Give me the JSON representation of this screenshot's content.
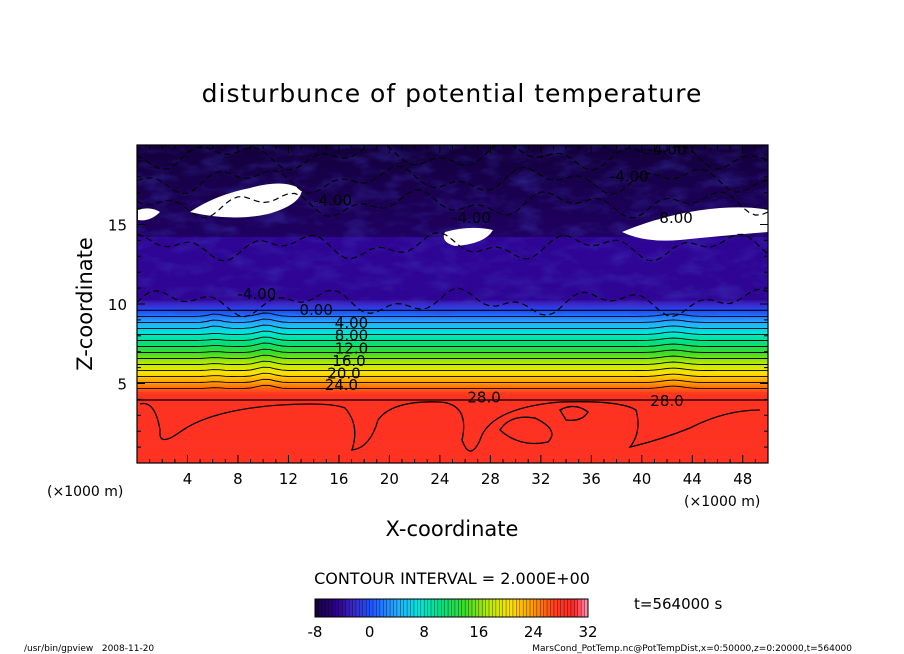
{
  "chart_data": {
    "type": "heatmap",
    "title": "disturbunce of potential temperature",
    "xlabel": "X-coordinate",
    "ylabel": "Z-coordinate",
    "x_unit": "(×1000 m)",
    "z_unit": "(×1000 m)",
    "xlim": [
      0,
      50
    ],
    "ylim": [
      0,
      20
    ],
    "x_ticks": [
      4,
      8,
      12,
      16,
      20,
      24,
      28,
      32,
      36,
      40,
      44,
      48
    ],
    "y_ticks": [
      5,
      10,
      15
    ],
    "contour_interval_text": "CONTOUR INTERVAL = 2.000E+00",
    "time_text": "t=564000 s",
    "colorbar": {
      "min": -8,
      "max": 32,
      "ticks": [
        -8,
        0,
        8,
        16,
        24,
        32
      ]
    },
    "contour_labels": [
      {
        "text": "-4.00",
        "x": 42.0,
        "z": 19.4
      },
      {
        "text": "-4.00",
        "x": 39.0,
        "z": 17.7
      },
      {
        "text": "-4.00",
        "x": 15.5,
        "z": 16.2
      },
      {
        "text": "-4.00",
        "x": 26.5,
        "z": 15.1
      },
      {
        "text": "-8.00",
        "x": 42.5,
        "z": 15.1
      },
      {
        "text": "-4.00",
        "x": 9.5,
        "z": 10.3
      },
      {
        "text": "0.00",
        "x": 14.2,
        "z": 9.3
      },
      {
        "text": "4.00",
        "x": 17.0,
        "z": 8.5
      },
      {
        "text": "8.00",
        "x": 17.0,
        "z": 7.7
      },
      {
        "text": "12.0",
        "x": 17.0,
        "z": 6.9
      },
      {
        "text": "16.0",
        "x": 16.8,
        "z": 6.1
      },
      {
        "text": "20.0",
        "x": 16.4,
        "z": 5.3
      },
      {
        "text": "24.0",
        "x": 16.2,
        "z": 4.6
      },
      {
        "text": "28.0",
        "x": 27.5,
        "z": 3.8
      },
      {
        "text": "28.0",
        "x": 42.0,
        "z": 3.6
      }
    ]
  },
  "footer": {
    "left": "/usr/bin/gpview   2008-11-20",
    "right": "MarsCond_PotTemp.nc@PotTempDist,x=0:50000,z=0:20000,t=564000"
  }
}
